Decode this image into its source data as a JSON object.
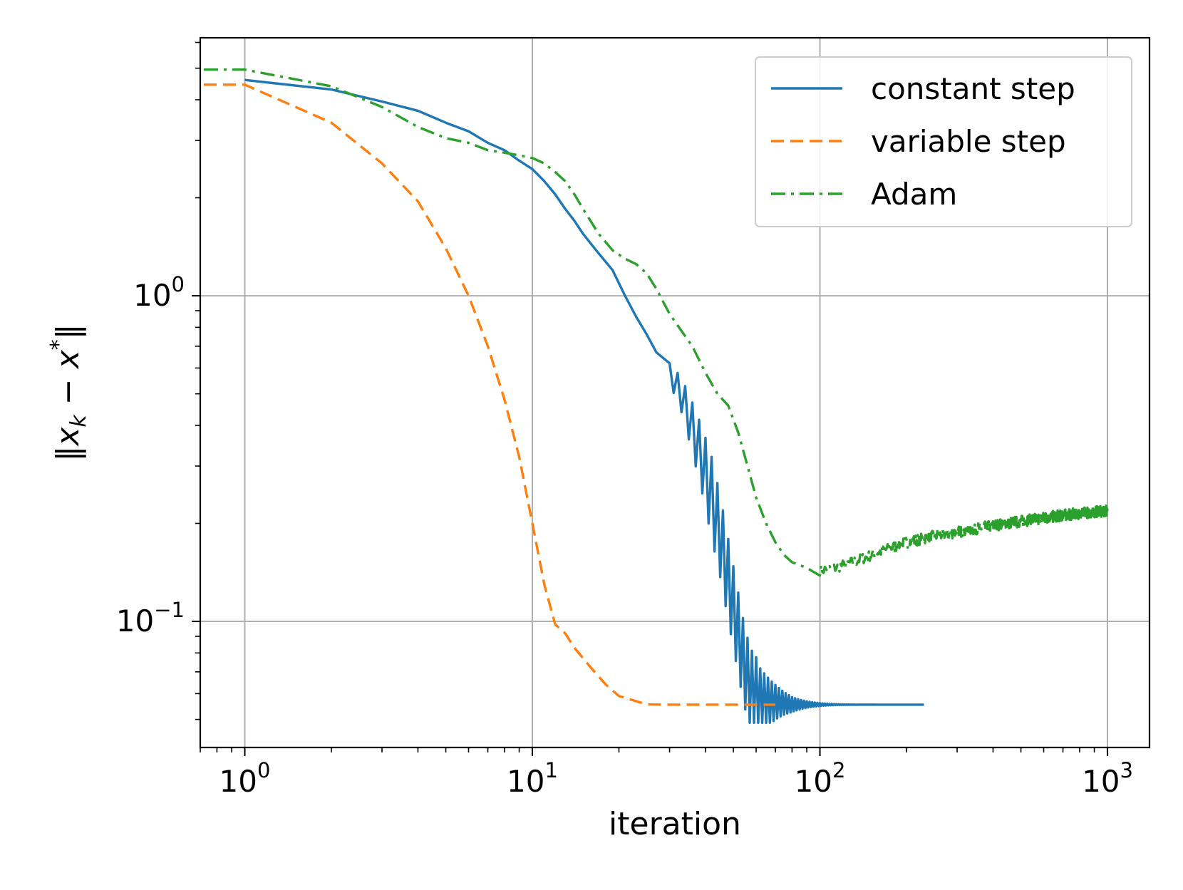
{
  "chart_data": {
    "type": "line",
    "xlabel": "iteration",
    "ylabel": "‖x_k − x*‖",
    "ylabel_parts": {
      "bar_open": "‖",
      "var": "x",
      "sub": "k",
      "minus": " − ",
      "var2": "x",
      "sup": "*",
      "bar_close": "‖"
    },
    "xscale": "log",
    "yscale": "log",
    "xlim": [
      0.7,
      1400
    ],
    "ylim": [
      0.041,
      6.2
    ],
    "grid": true,
    "legend_position": "top-right",
    "x_ticks": [
      {
        "base": "10",
        "exp": "0",
        "value": 1
      },
      {
        "base": "10",
        "exp": "1",
        "value": 10
      },
      {
        "base": "10",
        "exp": "2",
        "value": 100
      },
      {
        "base": "10",
        "exp": "3",
        "value": 1000
      }
    ],
    "y_ticks": [
      {
        "base": "10",
        "exp": "0",
        "value": 1
      },
      {
        "base": "10",
        "exp": "−1",
        "value": 0.1
      }
    ],
    "series": [
      {
        "name": "constant step",
        "color": "#1f77b4",
        "dash": "solid",
        "oscillation": {
          "start": 30,
          "end": 230,
          "decay_iter": 60,
          "final": 0.0555
        },
        "points": [
          [
            1,
            4.6
          ],
          [
            2,
            4.3
          ],
          [
            3,
            3.95
          ],
          [
            4,
            3.7
          ],
          [
            5,
            3.4
          ],
          [
            6,
            3.2
          ],
          [
            7,
            2.95
          ],
          [
            8,
            2.8
          ],
          [
            9,
            2.6
          ],
          [
            10,
            2.45
          ],
          [
            11,
            2.25
          ],
          [
            12,
            2.05
          ],
          [
            13,
            1.85
          ],
          [
            14,
            1.7
          ],
          [
            15,
            1.55
          ],
          [
            17,
            1.35
          ],
          [
            19,
            1.2
          ],
          [
            21,
            1.0
          ],
          [
            23,
            0.86
          ],
          [
            25,
            0.76
          ],
          [
            27,
            0.67
          ],
          [
            30,
            0.58
          ],
          [
            33,
            0.5
          ],
          [
            36,
            0.4
          ],
          [
            39,
            0.32
          ],
          [
            42,
            0.25
          ],
          [
            45,
            0.19
          ],
          [
            48,
            0.14
          ],
          [
            51,
            0.105
          ],
          [
            54,
            0.08
          ],
          [
            57,
            0.065
          ],
          [
            62,
            0.058
          ],
          [
            80,
            0.0556
          ],
          [
            120,
            0.0555
          ],
          [
            230,
            0.0555
          ]
        ]
      },
      {
        "name": "variable step",
        "color": "#ff7f0e",
        "dash": "dashed",
        "points": [
          [
            0.72,
            4.45
          ],
          [
            1,
            4.45
          ],
          [
            2,
            3.4
          ],
          [
            3,
            2.55
          ],
          [
            4,
            1.95
          ],
          [
            5,
            1.4
          ],
          [
            6,
            1.0
          ],
          [
            7,
            0.7
          ],
          [
            8,
            0.48
          ],
          [
            9,
            0.32
          ],
          [
            10,
            0.2
          ],
          [
            11,
            0.13
          ],
          [
            12,
            0.098
          ],
          [
            13,
            0.092
          ],
          [
            14,
            0.083
          ],
          [
            16,
            0.072
          ],
          [
            18,
            0.064
          ],
          [
            20,
            0.059
          ],
          [
            25,
            0.0556
          ],
          [
            30,
            0.0555
          ],
          [
            70,
            0.0555
          ]
        ]
      },
      {
        "name": "Adam",
        "color": "#2ca02c",
        "dash": "dashdot",
        "noise": {
          "start": 100,
          "amplitude": 0.04
        },
        "points": [
          [
            0.72,
            4.95
          ],
          [
            1,
            4.95
          ],
          [
            2,
            4.4
          ],
          [
            3,
            3.8
          ],
          [
            4,
            3.3
          ],
          [
            5,
            3.05
          ],
          [
            6,
            2.95
          ],
          [
            7,
            2.8
          ],
          [
            8,
            2.75
          ],
          [
            9,
            2.7
          ],
          [
            10,
            2.65
          ],
          [
            11,
            2.55
          ],
          [
            12,
            2.4
          ],
          [
            13,
            2.25
          ],
          [
            14,
            2.05
          ],
          [
            15,
            1.85
          ],
          [
            17,
            1.55
          ],
          [
            19,
            1.38
          ],
          [
            21,
            1.3
          ],
          [
            23,
            1.25
          ],
          [
            25,
            1.17
          ],
          [
            27,
            1.05
          ],
          [
            30,
            0.88
          ],
          [
            33,
            0.78
          ],
          [
            36,
            0.7
          ],
          [
            40,
            0.58
          ],
          [
            44,
            0.5
          ],
          [
            48,
            0.46
          ],
          [
            52,
            0.38
          ],
          [
            56,
            0.3
          ],
          [
            60,
            0.24
          ],
          [
            65,
            0.2
          ],
          [
            70,
            0.175
          ],
          [
            75,
            0.16
          ],
          [
            80,
            0.152
          ],
          [
            90,
            0.146
          ],
          [
            100,
            0.144
          ],
          [
            110,
            0.145
          ],
          [
            130,
            0.152
          ],
          [
            160,
            0.163
          ],
          [
            200,
            0.175
          ],
          [
            250,
            0.183
          ],
          [
            300,
            0.188
          ],
          [
            400,
            0.197
          ],
          [
            500,
            0.203
          ],
          [
            600,
            0.208
          ],
          [
            700,
            0.212
          ],
          [
            800,
            0.215
          ],
          [
            900,
            0.217
          ],
          [
            1000,
            0.219
          ]
        ]
      }
    ]
  }
}
